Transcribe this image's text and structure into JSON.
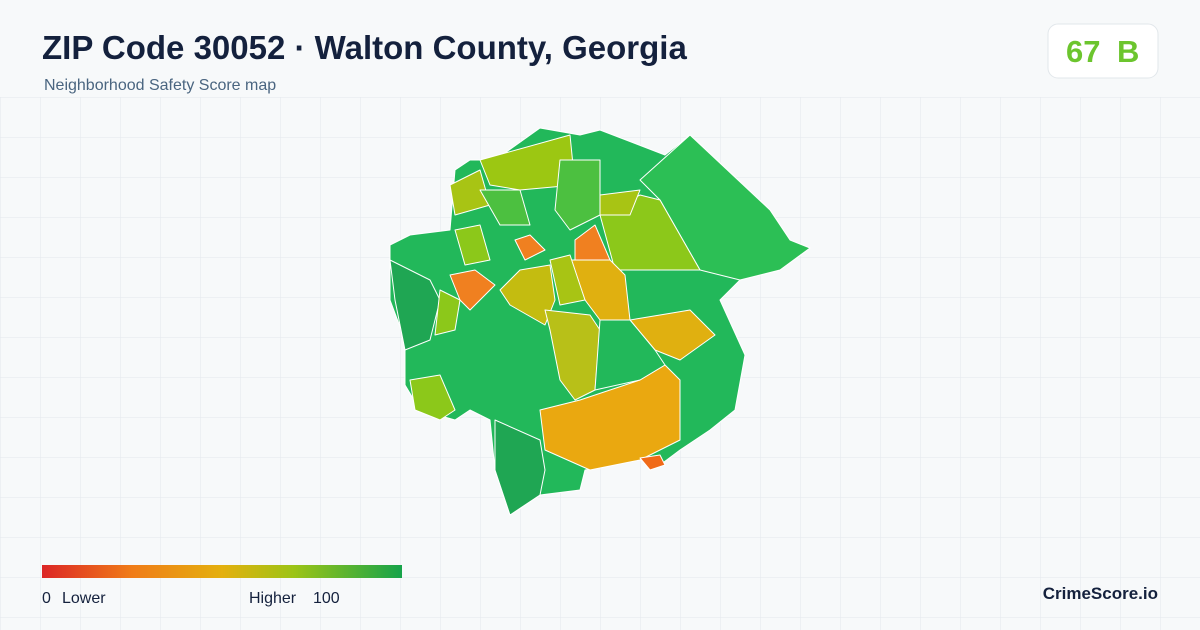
{
  "header": {
    "title": "ZIP Code 30052 · Walton County, Georgia",
    "subtitle": "Neighborhood Safety Score map"
  },
  "score": {
    "value": "67",
    "grade": "B"
  },
  "legend": {
    "min": "0",
    "min_label": "Lower",
    "max_label": "Higher",
    "max": "100"
  },
  "brand": "CrimeScore.io"
}
